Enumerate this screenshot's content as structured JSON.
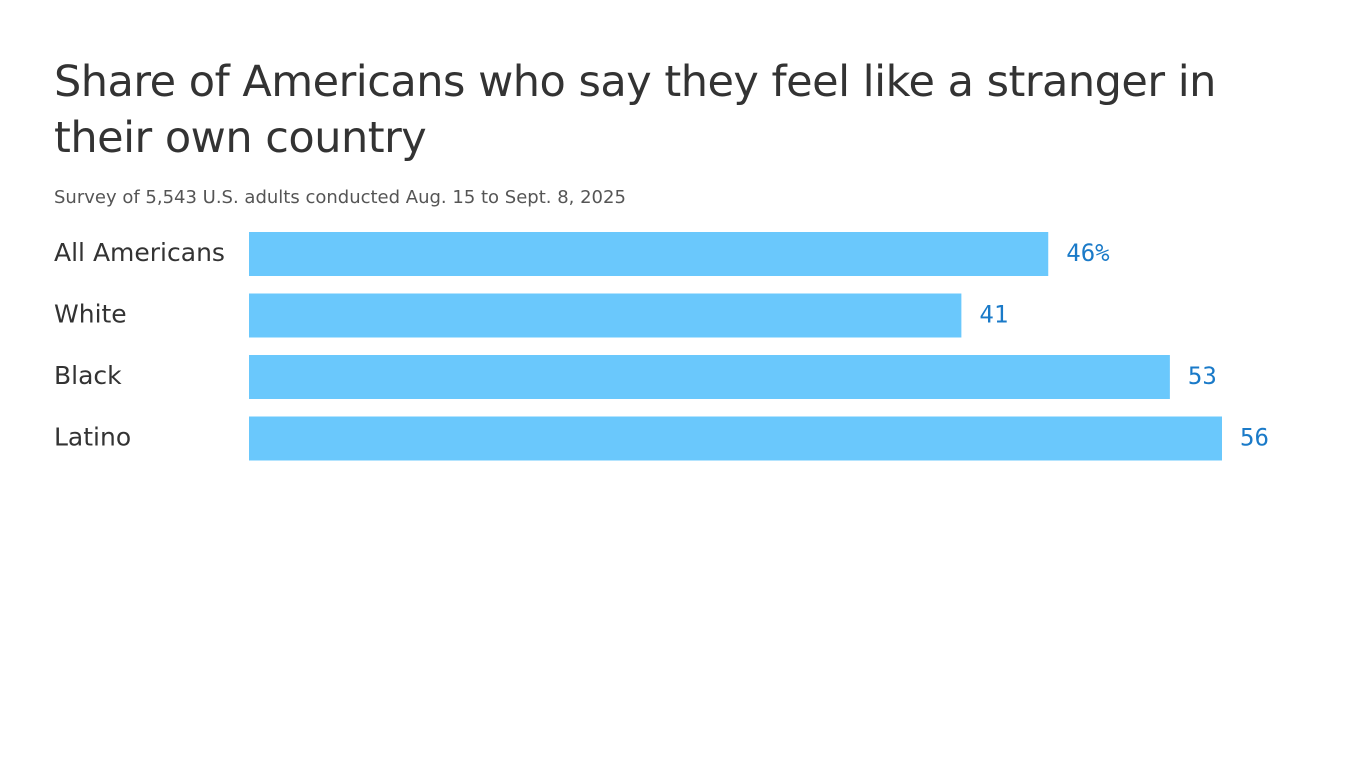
{
  "chart_data": {
    "type": "bar",
    "orientation": "horizontal",
    "title": "Share of Americans who say they feel like a stranger in their own country",
    "subtitle": "Survey of 5,543 U.S. adults conducted Aug. 15 to Sept. 8, 2025",
    "categories": [
      "All Americans",
      "White",
      "Black",
      "Latino"
    ],
    "values": [
      46,
      41,
      53,
      56
    ],
    "value_labels": [
      "46%",
      "41",
      "53",
      "56"
    ],
    "color": "#6ac8fc",
    "label_color": "#1a7ac8"
  }
}
